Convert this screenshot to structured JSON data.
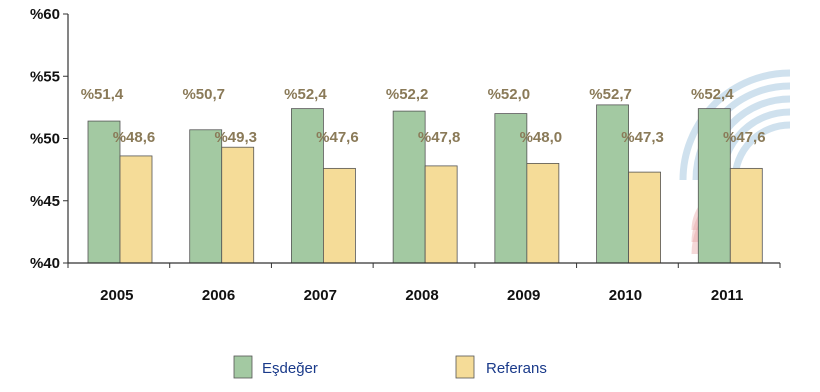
{
  "colors": {
    "series_a": "#a3c9a2",
    "series_b": "#f5dc98",
    "label": "#8a7a58",
    "axis": "#333333",
    "legend_text": "#1a3a8a",
    "watermark_blue": "#9fc4dd",
    "watermark_red": "#e8a8a8"
  },
  "chart_data": {
    "type": "bar",
    "title": "",
    "xlabel": "",
    "ylabel": "",
    "categories": [
      "2005",
      "2006",
      "2007",
      "2008",
      "2009",
      "2010",
      "2011"
    ],
    "ylim": [
      40,
      60
    ],
    "yticks": [
      40,
      45,
      50,
      55,
      60
    ],
    "ytick_labels": [
      "%40",
      "%45",
      "%50",
      "%55",
      "%60"
    ],
    "grid": false,
    "legend_position": "bottom",
    "series": [
      {
        "name": "Eşdeğer",
        "values": [
          51.4,
          50.7,
          52.4,
          52.2,
          52.0,
          52.7,
          52.4
        ],
        "labels": [
          "%51,4",
          "%50,7",
          "%52,4",
          "%52,2",
          "%52,0",
          "%52,7",
          "%52,4"
        ]
      },
      {
        "name": "Referans",
        "values": [
          48.6,
          49.3,
          47.6,
          47.8,
          48.0,
          47.3,
          47.6
        ],
        "labels": [
          "%48,6",
          "%49,3",
          "%47,6",
          "%47,8",
          "%48,0",
          "%47,3",
          "%47,6"
        ]
      }
    ]
  }
}
